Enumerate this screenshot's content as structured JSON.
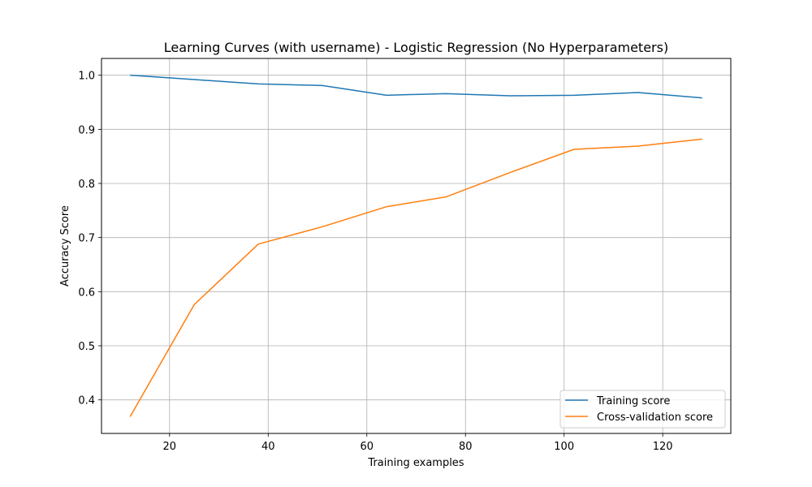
{
  "chart_data": {
    "type": "line",
    "title": "Learning Curves (with username) - Logistic Regression (No Hyperparameters)",
    "xlabel": "Training examples",
    "ylabel": "Accuracy Score",
    "x": [
      12,
      25,
      38,
      51,
      64,
      76,
      89,
      102,
      115,
      128
    ],
    "series": [
      {
        "name": "Training score",
        "color": "#1f77b4",
        "values": [
          1.0,
          0.992,
          0.984,
          0.981,
          0.963,
          0.966,
          0.962,
          0.963,
          0.968,
          0.958
        ]
      },
      {
        "name": "Cross-validation score",
        "color": "#ff7f0e",
        "values": [
          0.369,
          0.576,
          0.688,
          0.72,
          0.757,
          0.775,
          0.82,
          0.863,
          0.869,
          0.882
        ]
      }
    ],
    "xlim": [
      6.2,
      133.8
    ],
    "ylim": [
      0.338,
      1.031
    ],
    "xticks": [
      20,
      40,
      60,
      80,
      100,
      120
    ],
    "yticks": [
      0.4,
      0.5,
      0.6,
      0.7,
      0.8,
      0.9,
      1.0
    ],
    "grid": true,
    "legend_position": "lower-right"
  }
}
